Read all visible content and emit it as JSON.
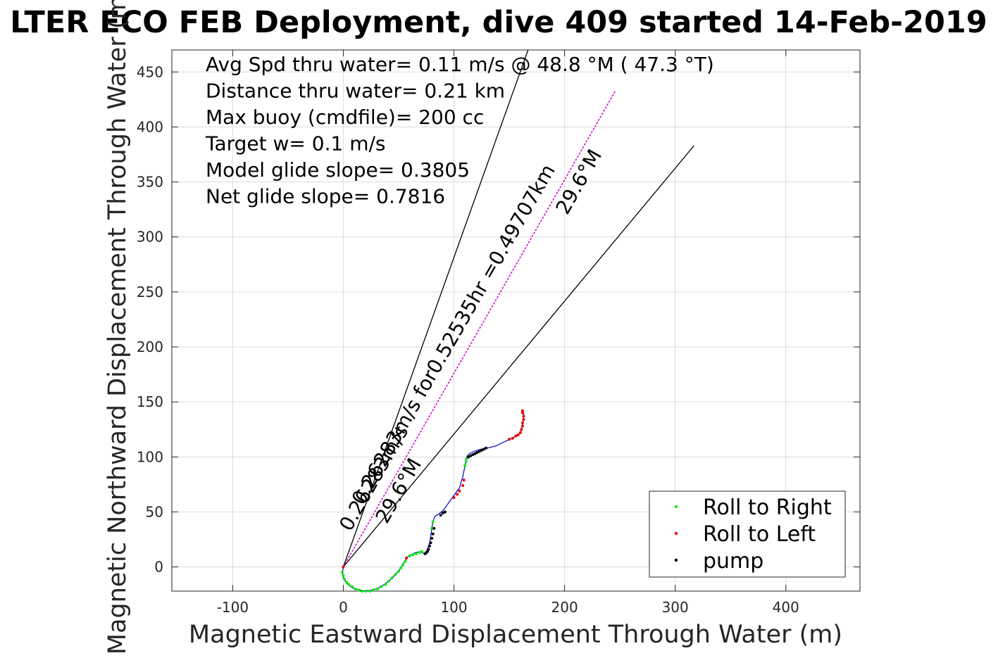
{
  "chart_data": {
    "type": "scatter",
    "title": "LTER ECO FEB Deployment, dive 409 started 14-Feb-2019",
    "xlabel": "Magnetic Eastward Displacement Through Water (m)",
    "ylabel": "Magnetic Northward Displacement Through Water (m)",
    "xlim": [
      -155,
      467
    ],
    "ylim": [
      -22,
      470
    ],
    "xticks": [
      "-100",
      "0",
      "100",
      "200",
      "300",
      "400"
    ],
    "xtick_values": [
      -100,
      0,
      100,
      200,
      300,
      400
    ],
    "yticks": [
      "0",
      "50",
      "100",
      "150",
      "200",
      "250",
      "300",
      "350",
      "400",
      "450"
    ],
    "ytick_values": [
      0,
      50,
      100,
      150,
      200,
      250,
      300,
      350,
      400,
      450
    ],
    "grid": true,
    "annotations": [
      "Avg Spd thru water=  0.11 m/s @  48.8 °M ( 47.3 °T)",
      "Distance thru water=  0.21 km",
      "Max buoy (cmdfile)= 200 cc",
      "Target w= 0.1 m/s",
      "Model glide slope= 0.3805",
      "Net glide slope= 0.7816"
    ],
    "rotated_labels": {
      "current_line1": "0.26283m/s for0.52535hr =0.49707km",
      "current_line2": "29.6°M",
      "short_line1": "0.26283m/s",
      "short_line2": "29.6°M"
    },
    "lines": {
      "current_vector": {
        "x": [
          0,
          246
        ],
        "y": [
          0,
          433
        ],
        "color": "#cc00cc"
      },
      "cone_upper": {
        "x": [
          0,
          167
        ],
        "y": [
          0,
          470
        ],
        "color": "#000000"
      },
      "cone_lower": {
        "x": [
          0,
          317
        ],
        "y": [
          0,
          383
        ],
        "color": "#000000"
      }
    },
    "track": {
      "x": [
        0,
        -1,
        0,
        3,
        8,
        14,
        20,
        27,
        34,
        41,
        47,
        52,
        56,
        58,
        61,
        65,
        70,
        73,
        75,
        76,
        78,
        79,
        80,
        81,
        82,
        83,
        86,
        90,
        95,
        100,
        105,
        108,
        110,
        111,
        112,
        114,
        118,
        124,
        130,
        138,
        146,
        153,
        158,
        161,
        162,
        163,
        163,
        162
      ],
      "y": [
        0,
        -5,
        -10,
        -15,
        -19,
        -21,
        -22,
        -21,
        -18,
        -13,
        -7,
        -1,
        6,
        9,
        11,
        13,
        14,
        12,
        13,
        16,
        22,
        28,
        35,
        41,
        44,
        46,
        48,
        51,
        58,
        65,
        72,
        82,
        92,
        99,
        101,
        103,
        105,
        107,
        108,
        110,
        114,
        117,
        120,
        124,
        130,
        135,
        139,
        142
      ],
      "color": "#0000cc"
    },
    "series": [
      {
        "name": "Roll to Right",
        "color": "#00ee00",
        "x": [
          -1,
          0,
          1,
          3,
          5,
          8,
          11,
          14,
          17,
          20,
          24,
          27,
          31,
          34,
          38,
          41,
          44,
          47,
          50,
          52,
          54,
          56,
          60,
          63,
          66,
          69,
          71,
          110,
          111,
          112,
          80,
          81
        ],
        "y": [
          -5,
          -8,
          -11,
          -14,
          -16,
          -18,
          -20,
          -21,
          -22,
          -22,
          -22,
          -21,
          -20,
          -18,
          -16,
          -13,
          -10,
          -7,
          -4,
          -1,
          2,
          5,
          10,
          11,
          12,
          13,
          14,
          92,
          96,
          99,
          35,
          41
        ]
      },
      {
        "name": "Roll to Left",
        "color": "#ee0000",
        "x": [
          0,
          57,
          100,
          103,
          105,
          108,
          109,
          150,
          153,
          156,
          158,
          160,
          161,
          162,
          162,
          163,
          163,
          162,
          162
        ],
        "y": [
          0,
          8,
          63,
          66,
          69,
          74,
          79,
          116,
          117,
          119,
          120,
          122,
          125,
          128,
          131,
          134,
          137,
          140,
          142
        ]
      },
      {
        "name": "pump",
        "color": "#000000",
        "x": [
          74,
          75,
          76,
          77,
          78,
          79,
          80,
          81,
          82,
          88,
          90,
          92,
          113,
          115,
          117,
          119,
          121,
          123,
          125,
          127,
          129
        ],
        "y": [
          12,
          13,
          14,
          16,
          19,
          22,
          26,
          30,
          35,
          47,
          49,
          50,
          100,
          101,
          102,
          103,
          104,
          105,
          106,
          107,
          108
        ]
      }
    ]
  }
}
